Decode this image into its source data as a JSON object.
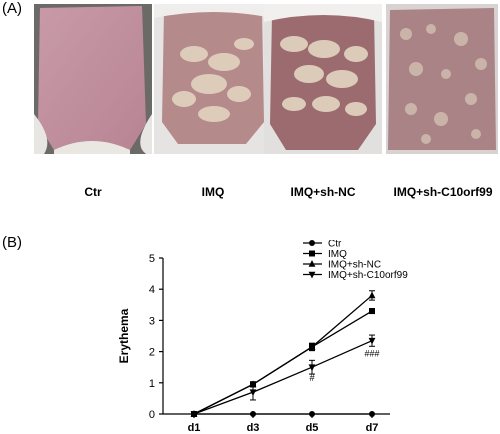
{
  "panel_a": {
    "label": "(A)",
    "photos": [
      {
        "caption": "Ctr"
      },
      {
        "caption": "IMQ"
      },
      {
        "caption": "IMQ+sh-NC"
      },
      {
        "caption": "IMQ+sh-C10orf99"
      }
    ]
  },
  "panel_b": {
    "label": "(B)"
  },
  "chart_data": {
    "type": "line",
    "x": [
      "d1",
      "d3",
      "d5",
      "d7"
    ],
    "ylabel": "Erythema",
    "ylim": [
      0,
      5
    ],
    "yticks": [
      0,
      1,
      2,
      3,
      4,
      5
    ],
    "legend_placement": "top-right",
    "series": [
      {
        "name": "Ctr",
        "marker": "circle",
        "values": [
          0,
          0,
          0,
          0
        ],
        "errors": [
          0,
          0,
          0,
          0
        ]
      },
      {
        "name": "IMQ",
        "marker": "square",
        "values": [
          0,
          0.95,
          2.15,
          3.3
        ],
        "errors": [
          0,
          0.08,
          0.1,
          0.08
        ]
      },
      {
        "name": "IMQ+sh-NC",
        "marker": "triangle-up",
        "values": [
          0,
          0.95,
          2.15,
          3.8
        ],
        "errors": [
          0,
          0.08,
          0.12,
          0.15
        ]
      },
      {
        "name": "IMQ+sh-C10orf99",
        "marker": "triangle-down",
        "values": [
          0,
          0.7,
          1.5,
          2.35
        ],
        "errors": [
          0,
          0.25,
          0.22,
          0.18
        ]
      }
    ],
    "annotations": [
      {
        "x": "d5",
        "y": 1.05,
        "text": "#"
      },
      {
        "x": "d7",
        "y": 1.85,
        "text": "###"
      }
    ]
  }
}
